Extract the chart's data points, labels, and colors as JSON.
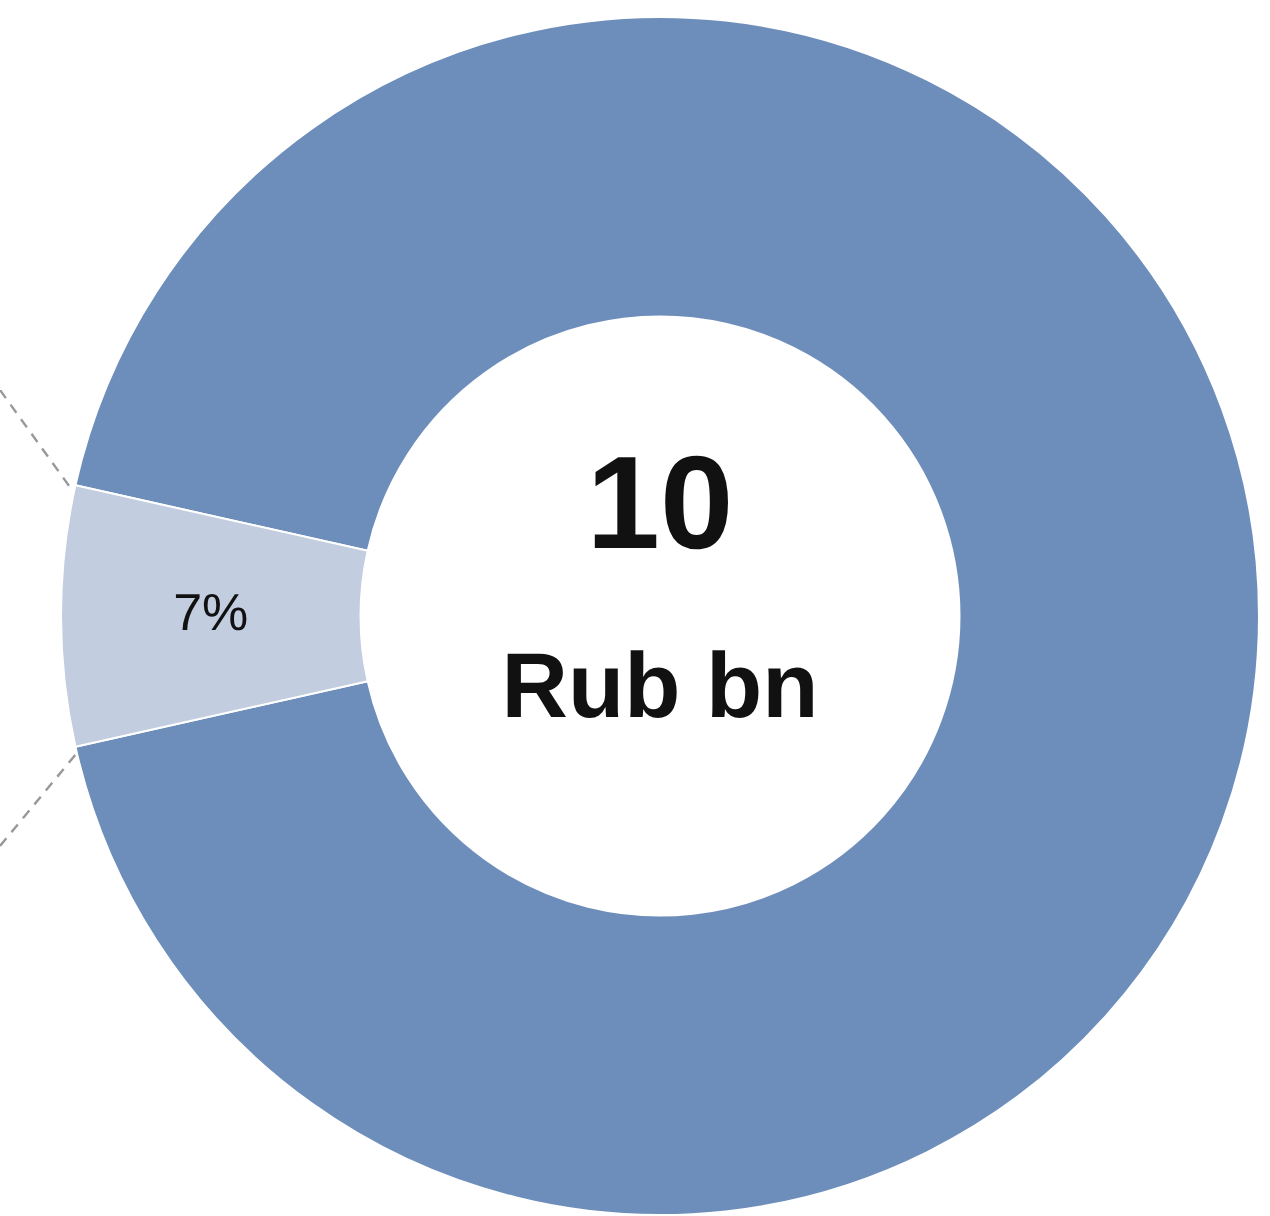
{
  "chart_data": {
    "type": "donut",
    "categories": [
      null,
      null
    ],
    "values": [
      93,
      7
    ],
    "colors": [
      "#6d8ebb",
      "#c2cde0"
    ],
    "value_labels": [
      null,
      "7%"
    ],
    "annotations": [
      "10",
      "Rub bn"
    ],
    "legend": false
  }
}
